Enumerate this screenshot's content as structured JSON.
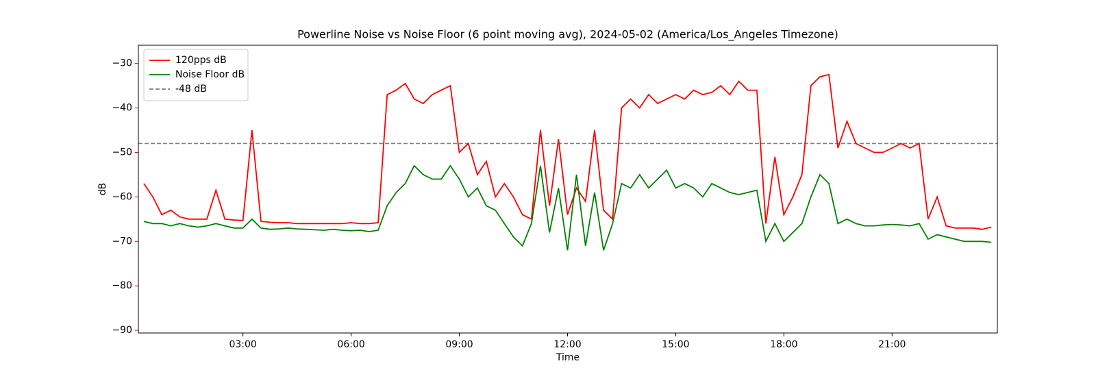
{
  "chart_data": {
    "type": "line",
    "title": "Powerline Noise vs Noise Floor (6 point moving avg), 2024-05-02 (America/Los_Angeles Timezone)",
    "x_label": "Time",
    "y_label": "dB",
    "y_label_color": "#ff0000",
    "x": [
      0.25,
      0.5,
      0.75,
      1,
      1.25,
      1.5,
      1.75,
      2,
      2.25,
      2.5,
      2.75,
      3,
      3.25,
      3.5,
      3.75,
      4,
      4.25,
      4.5,
      4.75,
      5,
      5.25,
      5.5,
      5.75,
      6,
      6.25,
      6.5,
      6.75,
      7,
      7.25,
      7.5,
      7.75,
      8,
      8.25,
      8.5,
      8.75,
      9,
      9.25,
      9.5,
      9.75,
      10,
      10.25,
      10.5,
      10.75,
      11,
      11.25,
      11.5,
      11.75,
      12,
      12.25,
      12.5,
      12.75,
      13,
      13.25,
      13.5,
      13.75,
      14,
      14.25,
      14.5,
      14.75,
      15,
      15.25,
      15.5,
      15.75,
      16,
      16.25,
      16.5,
      16.75,
      17,
      17.25,
      17.5,
      17.75,
      18,
      18.25,
      18.5,
      18.75,
      19,
      19.25,
      19.5,
      19.75,
      20,
      20.25,
      20.5,
      20.75,
      21,
      21.25,
      21.5,
      21.75,
      22,
      22.25,
      22.5,
      22.75,
      23,
      23.25,
      23.5,
      23.75
    ],
    "series": [
      {
        "name": "120pps dB",
        "color": "#ff0000",
        "values": [
          -57,
          -60,
          -64,
          -63,
          -64.5,
          -65,
          -65,
          -65,
          -58.5,
          -65,
          -65.2,
          -65.3,
          -45,
          -65.5,
          -65.7,
          -65.8,
          -65.8,
          -66,
          -66,
          -66,
          -66,
          -66,
          -66,
          -65.8,
          -66,
          -66,
          -65.8,
          -37,
          -36,
          -34.5,
          -38,
          -39,
          -37,
          -36,
          -35,
          -50,
          -48,
          -55,
          -52,
          -60,
          -57,
          -60,
          -64,
          -65,
          -45,
          -62,
          -47,
          -64,
          -58,
          -61,
          -45,
          -63,
          -65,
          -40,
          -38,
          -40,
          -37,
          -39,
          -38,
          -37,
          -38,
          -36,
          -37,
          -36.5,
          -35,
          -37,
          -34,
          -36,
          -36,
          -66,
          -51,
          -64,
          -60,
          -55,
          -35,
          -33,
          -32.5,
          -49,
          -43,
          -48,
          -49,
          -50,
          -50,
          -49,
          -48,
          -49,
          -48,
          -65,
          -60,
          -66.5,
          -67,
          -67,
          -67,
          -67.3,
          -66.8
        ]
      },
      {
        "name": "Noise Floor dB",
        "color": "#008000",
        "values": [
          -65.5,
          -66,
          -66,
          -66.5,
          -66,
          -66.5,
          -66.8,
          -66.5,
          -66,
          -66.5,
          -67,
          -67,
          -65,
          -67,
          -67.3,
          -67.2,
          -67,
          -67.2,
          -67.3,
          -67.4,
          -67.5,
          -67.3,
          -67.5,
          -67.6,
          -67.5,
          -67.8,
          -67.5,
          -62,
          -59,
          -57,
          -53,
          -55,
          -56,
          -56,
          -53,
          -56,
          -60,
          -58,
          -62,
          -63,
          -66,
          -69,
          -71,
          -66,
          -53,
          -68,
          -58,
          -72,
          -55,
          -71,
          -59,
          -72,
          -66,
          -57,
          -58,
          -55,
          -58,
          -56,
          -54,
          -58,
          -57,
          -58,
          -60,
          -57,
          -58,
          -59,
          -59.5,
          -59,
          -58.5,
          -70,
          -66,
          -70,
          -68,
          -66,
          -60,
          -55,
          -57,
          -66,
          -65,
          -66,
          -66.5,
          -66.5,
          -66.3,
          -66.2,
          -66.3,
          -66.5,
          -66,
          -69.5,
          -68.5,
          -69,
          -69.5,
          -70,
          -70,
          -70,
          -70.2
        ]
      }
    ],
    "hline": {
      "name": "-48 dB",
      "value": -48,
      "color": "#808080"
    },
    "xlim": [
      0.1,
      23.92
    ],
    "ylim": [
      -90.6,
      -25.9
    ],
    "xticks": [
      {
        "value": 3,
        "label": "03:00"
      },
      {
        "value": 6,
        "label": "06:00"
      },
      {
        "value": 9,
        "label": "09:00"
      },
      {
        "value": 12,
        "label": "12:00"
      },
      {
        "value": 15,
        "label": "15:00"
      },
      {
        "value": 18,
        "label": "18:00"
      },
      {
        "value": 21,
        "label": "21:00"
      }
    ],
    "yticks": [
      {
        "value": -30,
        "label": "−30"
      },
      {
        "value": -40,
        "label": "−40"
      },
      {
        "value": -50,
        "label": "−50"
      },
      {
        "value": -60,
        "label": "−60"
      },
      {
        "value": -70,
        "label": "−70"
      },
      {
        "value": -80,
        "label": "−80"
      },
      {
        "value": -90,
        "label": "−90"
      }
    ],
    "ytick_color": "#ff0000",
    "legend": "upper left",
    "grid": false
  }
}
